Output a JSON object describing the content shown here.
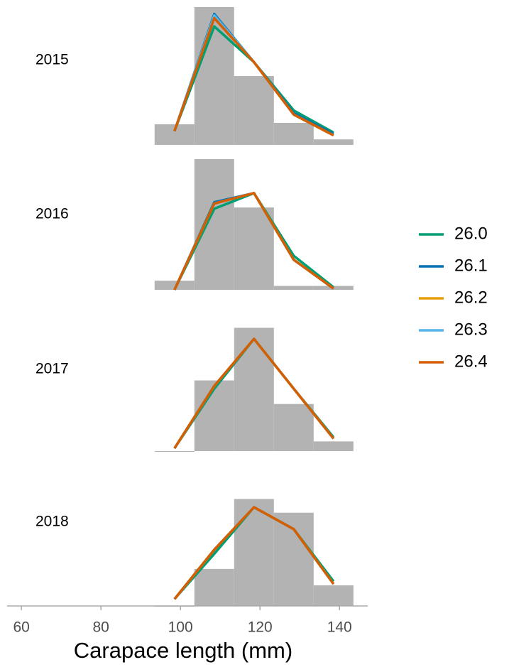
{
  "chart_data": {
    "type": "histogram",
    "xlabel": "Carapace length (mm)",
    "xlim": [
      56.4,
      147.1
    ],
    "xticks": [
      60,
      80,
      100,
      120,
      140
    ],
    "bins": [
      93.5,
      103.5,
      113.5,
      123.5,
      133.5,
      143.5
    ],
    "x": [
      98.5,
      108.5,
      118.5,
      128.5,
      138.5
    ],
    "bar_color": "#b3b3b3",
    "series": [
      {
        "name": "26.0",
        "color": "#009e73"
      },
      {
        "name": "26.1",
        "color": "#0072b2"
      },
      {
        "name": "26.2",
        "color": "#e69f00"
      },
      {
        "name": "26.3",
        "color": "#56b4e9"
      },
      {
        "name": "26.4",
        "color": "#d55e00"
      }
    ],
    "panels": [
      {
        "title": "2015",
        "ylim": [
          0,
          1
        ],
        "counts": [
          0.15,
          1.0,
          0.5,
          0.16,
          0.04
        ],
        "lines": [
          [
            0.1,
            0.86,
            0.6,
            0.25,
            0.09
          ],
          [
            0.1,
            0.95,
            0.6,
            0.23,
            0.08
          ],
          [
            0.1,
            0.93,
            0.6,
            0.22,
            0.07
          ],
          [
            0.1,
            0.94,
            0.6,
            0.22,
            0.07
          ],
          [
            0.1,
            0.92,
            0.6,
            0.22,
            0.07
          ]
        ]
      },
      {
        "title": "2016",
        "ylim": [
          0,
          1
        ],
        "counts": [
          0.07,
          1.0,
          0.63,
          0.03,
          0.03
        ],
        "lines": [
          [
            0,
            0.62,
            0.74,
            0.26,
            0.02
          ],
          [
            0,
            0.67,
            0.74,
            0.23,
            0.01
          ],
          [
            0,
            0.66,
            0.74,
            0.23,
            0.01
          ],
          [
            0,
            0.66,
            0.74,
            0.23,
            0.01
          ],
          [
            0,
            0.66,
            0.74,
            0.23,
            0.01
          ]
        ]
      },
      {
        "title": "2017",
        "ylim": [
          0,
          1
        ],
        "counts": [
          0,
          0.51,
          0.89,
          0.34,
          0.07
        ],
        "lines": [
          [
            0.02,
            0.45,
            0.81,
            0.45,
            0.1
          ],
          [
            0.02,
            0.47,
            0.81,
            0.45,
            0.09
          ],
          [
            0.02,
            0.47,
            0.81,
            0.45,
            0.09
          ],
          [
            0.02,
            0.47,
            0.81,
            0.45,
            0.09
          ],
          [
            0.02,
            0.47,
            0.81,
            0.45,
            0.09
          ]
        ]
      },
      {
        "title": "2018",
        "ylim": [
          0,
          1
        ],
        "counts": [
          0,
          0.27,
          0.78,
          0.68,
          0.15
        ],
        "lines": [
          [
            0.05,
            0.38,
            0.72,
            0.56,
            0.18
          ],
          [
            0.05,
            0.41,
            0.72,
            0.56,
            0.16
          ],
          [
            0.05,
            0.41,
            0.72,
            0.56,
            0.16
          ],
          [
            0.05,
            0.41,
            0.72,
            0.56,
            0.16
          ],
          [
            0.05,
            0.41,
            0.72,
            0.56,
            0.16
          ]
        ]
      }
    ]
  }
}
